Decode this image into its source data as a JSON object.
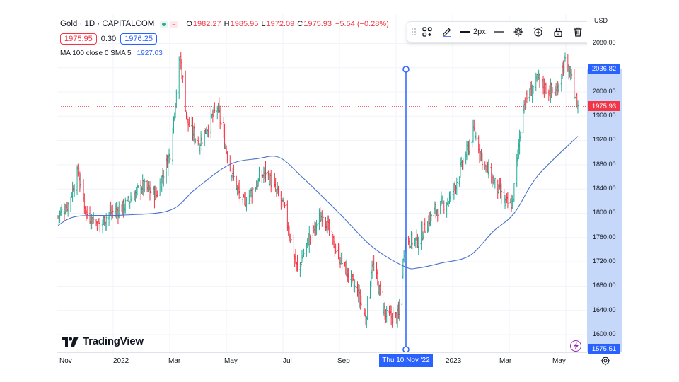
{
  "symbol": {
    "title": "Gold · 1D · CAPITALCOM",
    "ohlc": [
      {
        "label": "O",
        "value": "1982.27"
      },
      {
        "label": "H",
        "value": "1985.95"
      },
      {
        "label": "L",
        "value": "1972.09"
      },
      {
        "label": "C",
        "value": "1975.93"
      }
    ],
    "change": "−5.54 (−0.28%)",
    "bid": "1975.95",
    "spread": "0.30",
    "ask": "1976.25"
  },
  "indicator": {
    "label": "MA 100 close 0 SMA 5",
    "value": "1927.03"
  },
  "toolbar": {
    "width_label": "2px",
    "icons": [
      "layout-icon",
      "pencil-icon",
      "line-style-icon",
      "gear-icon",
      "alarm-add-icon",
      "unlock-icon",
      "trash-icon",
      "more-icon"
    ]
  },
  "price_axis": {
    "currency": "USD",
    "ticks": [
      "2080.00",
      "2000.00",
      "1960.00",
      "1920.00",
      "1880.00",
      "1840.00",
      "1800.00",
      "1760.00",
      "1720.00",
      "1680.00",
      "1640.00",
      "1600.00"
    ],
    "high_tag": "2036.82",
    "last_tag": "1975.93",
    "low_tag": "1575.51"
  },
  "time_axis": {
    "labels": [
      "Nov",
      "2022",
      "Mar",
      "May",
      "Jul",
      "Sep",
      "2023",
      "Mar",
      "May"
    ],
    "crosshair_tag": "Thu 10 Nov '22"
  },
  "logo": {
    "text": "TradingView"
  },
  "colors": {
    "up": "#22ab94",
    "down": "#f23645",
    "accent": "#2962ff",
    "ma": "#4a72c9"
  },
  "chart_data": {
    "type": "ohlc",
    "title": "Gold · 1D · CAPITALCOM",
    "ylabel": "USD",
    "ylim": [
      1560,
      2100
    ],
    "x_labels": [
      "Nov",
      "2022",
      "Mar",
      "May",
      "Jul",
      "Sep",
      "2023",
      "Mar",
      "May"
    ],
    "close_path": [
      {
        "t": "2021-10-25",
        "close": 1795
      },
      {
        "t": "2021-11-05",
        "close": 1815
      },
      {
        "t": "2021-11-16",
        "close": 1868
      },
      {
        "t": "2021-11-25",
        "close": 1800
      },
      {
        "t": "2021-12-10",
        "close": 1780
      },
      {
        "t": "2021-12-20",
        "close": 1800
      },
      {
        "t": "2022-01-05",
        "close": 1810
      },
      {
        "t": "2022-01-25",
        "close": 1845
      },
      {
        "t": "2022-02-10",
        "close": 1830
      },
      {
        "t": "2022-02-25",
        "close": 1900
      },
      {
        "t": "2022-03-08",
        "close": 2060
      },
      {
        "t": "2022-03-16",
        "close": 1950
      },
      {
        "t": "2022-03-29",
        "close": 1915
      },
      {
        "t": "2022-04-18",
        "close": 1975
      },
      {
        "t": "2022-05-02",
        "close": 1875
      },
      {
        "t": "2022-05-16",
        "close": 1815
      },
      {
        "t": "2022-06-10",
        "close": 1870
      },
      {
        "t": "2022-06-30",
        "close": 1810
      },
      {
        "t": "2022-07-15",
        "close": 1705
      },
      {
        "t": "2022-07-28",
        "close": 1760
      },
      {
        "t": "2022-08-12",
        "close": 1800
      },
      {
        "t": "2022-08-26",
        "close": 1740
      },
      {
        "t": "2022-09-20",
        "close": 1665
      },
      {
        "t": "2022-09-28",
        "close": 1625
      },
      {
        "t": "2022-10-05",
        "close": 1720
      },
      {
        "t": "2022-10-20",
        "close": 1630
      },
      {
        "t": "2022-11-03",
        "close": 1630
      },
      {
        "t": "2022-11-10",
        "close": 1755
      },
      {
        "t": "2022-11-25",
        "close": 1755
      },
      {
        "t": "2022-12-10",
        "close": 1800
      },
      {
        "t": "2022-12-30",
        "close": 1825
      },
      {
        "t": "2023-01-25",
        "close": 1935
      },
      {
        "t": "2023-02-05",
        "close": 1880
      },
      {
        "t": "2023-02-20",
        "close": 1840
      },
      {
        "t": "2023-03-01",
        "close": 1815
      },
      {
        "t": "2023-03-08",
        "close": 1815
      },
      {
        "t": "2023-03-20",
        "close": 1980
      },
      {
        "t": "2023-04-05",
        "close": 2020
      },
      {
        "t": "2023-04-14",
        "close": 2005
      },
      {
        "t": "2023-04-25",
        "close": 2000
      },
      {
        "t": "2023-05-04",
        "close": 2050
      },
      {
        "t": "2023-05-10",
        "close": 2030
      },
      {
        "t": "2023-05-19",
        "close": 1976
      }
    ],
    "ma_series": {
      "name": "MA 100 close 0 SMA 5",
      "points": [
        {
          "t": "2021-10-25",
          "value": 1780
        },
        {
          "t": "2021-11-15",
          "value": 1795
        },
        {
          "t": "2022-01-05",
          "value": 1797
        },
        {
          "t": "2022-02-25",
          "value": 1805
        },
        {
          "t": "2022-03-25",
          "value": 1840
        },
        {
          "t": "2022-05-01",
          "value": 1880
        },
        {
          "t": "2022-06-01",
          "value": 1890
        },
        {
          "t": "2022-06-25",
          "value": 1892
        },
        {
          "t": "2022-07-20",
          "value": 1860
        },
        {
          "t": "2022-08-30",
          "value": 1800
        },
        {
          "t": "2022-10-05",
          "value": 1745
        },
        {
          "t": "2022-11-10",
          "value": 1712
        },
        {
          "t": "2022-11-25",
          "value": 1710
        },
        {
          "t": "2022-12-20",
          "value": 1718
        },
        {
          "t": "2023-01-20",
          "value": 1730
        },
        {
          "t": "2023-02-15",
          "value": 1770
        },
        {
          "t": "2023-03-10",
          "value": 1800
        },
        {
          "t": "2023-04-05",
          "value": 1862
        },
        {
          "t": "2023-05-19",
          "value": 1927
        }
      ]
    },
    "crosshair": {
      "date": "Thu 10 Nov '22",
      "high": 2036.82,
      "low": 1575.51
    },
    "last_price": 1975.93,
    "grid": true
  }
}
